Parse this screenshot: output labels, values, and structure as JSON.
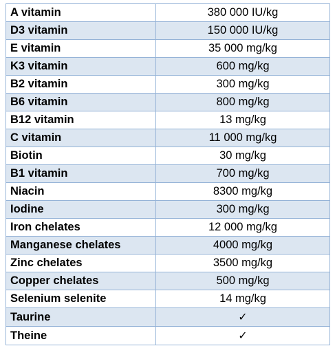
{
  "table": {
    "rows": [
      {
        "name": "A vitamin",
        "value": "380 000 IU/kg"
      },
      {
        "name": "D3 vitamin",
        "value": "150 000 IU/kg"
      },
      {
        "name": "E vitamin",
        "value": "35 000 mg/kg"
      },
      {
        "name": "K3 vitamin",
        "value": "600 mg/kg"
      },
      {
        "name": "B2 vitamin",
        "value": "300 mg/kg"
      },
      {
        "name": "B6 vitamin",
        "value": "800 mg/kg"
      },
      {
        "name": "B12 vitamin",
        "value": "13 mg/kg"
      },
      {
        "name": "C vitamin",
        "value": "11 000 mg/kg"
      },
      {
        "name": "Biotin",
        "value": "30 mg/kg"
      },
      {
        "name": "B1 vitamin",
        "value": "700 mg/kg"
      },
      {
        "name": "Niacin",
        "value": "8300 mg/kg"
      },
      {
        "name": "Iodine",
        "value": "300 mg/kg"
      },
      {
        "name": "Iron chelates",
        "value": "12 000 mg/kg"
      },
      {
        "name": "Manganese chelates",
        "value": "4000 mg/kg"
      },
      {
        "name": "Zinc chelates",
        "value": "3500 mg/kg"
      },
      {
        "name": "Copper chelates",
        "value": "500 mg/kg"
      },
      {
        "name": "Selenium selenite",
        "value": "14 mg/kg"
      },
      {
        "name": "Taurine",
        "value": "✓"
      },
      {
        "name": "Theine",
        "value": "✓"
      }
    ]
  },
  "colors": {
    "row_white": "#ffffff",
    "row_blue": "#dce6f1",
    "border": "#95b3d7",
    "text": "#000000"
  }
}
